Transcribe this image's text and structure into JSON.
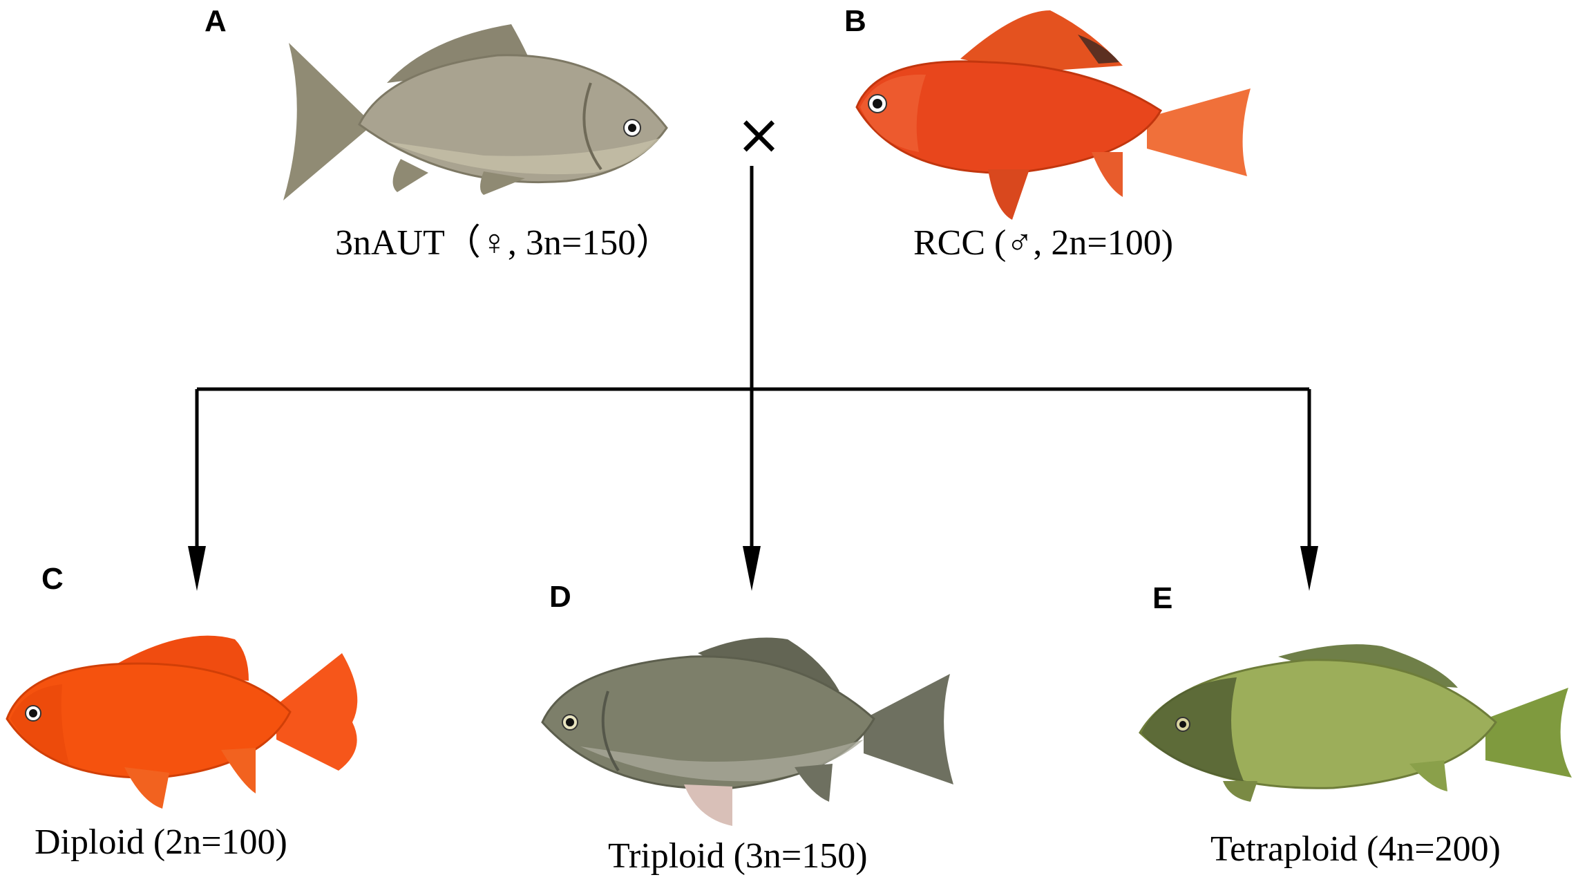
{
  "panels": {
    "A": {
      "letter": "A",
      "caption": "3nAUT（♀, 3n=150）",
      "fish_color": "#a9a390"
    },
    "B": {
      "letter": "B",
      "caption": "RCC (♂, 2n=100)",
      "fish_color": "#e8461c"
    },
    "C": {
      "letter": "C",
      "caption": "Diploid (2n=100)",
      "fish_color": "#f5520e"
    },
    "D": {
      "letter": "D",
      "caption": "Triploid (3n=150)",
      "fish_color": "#7d7f6a"
    },
    "E": {
      "letter": "E",
      "caption": "Tetraploid (4n=200)",
      "fish_color": "#9cae5a"
    }
  },
  "cross_symbol": "×"
}
